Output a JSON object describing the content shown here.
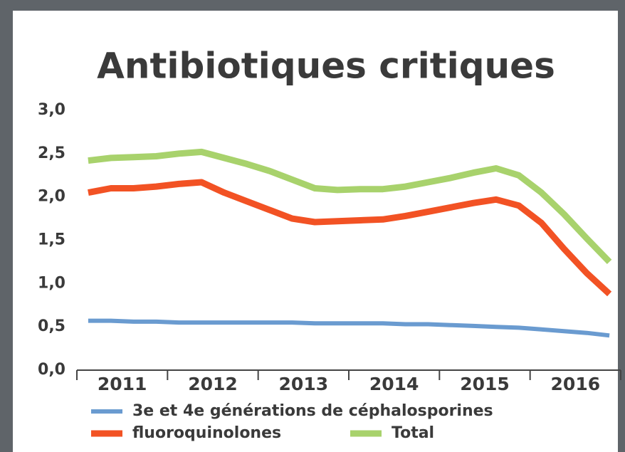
{
  "chart_data": {
    "type": "line",
    "title": "Antibiotiques critiques",
    "categories": [
      null,
      "2011",
      null,
      null,
      null,
      "2012",
      null,
      null,
      null,
      "2013",
      null,
      null,
      null,
      "2014",
      null,
      null,
      null,
      "2015",
      null,
      null,
      null,
      "2016",
      null,
      null
    ],
    "series": [
      {
        "name": "3e et 4e générations de céphalosporines",
        "color": "#6a9bd0",
        "values": [
          0.57,
          0.57,
          0.56,
          0.56,
          0.55,
          0.55,
          0.55,
          0.55,
          0.55,
          0.55,
          0.54,
          0.54,
          0.54,
          0.54,
          0.53,
          0.53,
          0.52,
          0.51,
          0.5,
          0.49,
          0.47,
          0.45,
          0.43,
          0.4
        ]
      },
      {
        "name": "fluoroquinolones",
        "color": "#f25224",
        "values": [
          2.05,
          2.1,
          2.1,
          2.12,
          2.15,
          2.17,
          2.05,
          1.95,
          1.85,
          1.75,
          1.71,
          1.72,
          1.73,
          1.74,
          1.78,
          1.83,
          1.88,
          1.93,
          1.97,
          1.9,
          1.7,
          1.4,
          1.12,
          0.88
        ]
      },
      {
        "name": "Total",
        "color": "#a8d26c",
        "values": [
          2.42,
          2.45,
          2.46,
          2.47,
          2.5,
          2.52,
          2.45,
          2.38,
          2.3,
          2.2,
          2.1,
          2.08,
          2.09,
          2.09,
          2.12,
          2.17,
          2.22,
          2.28,
          2.33,
          2.25,
          2.05,
          1.8,
          1.52,
          1.25
        ]
      }
    ],
    "ylim": [
      0,
      3
    ],
    "yticks": [
      {
        "value": 0,
        "label": "0,0"
      },
      {
        "value": 0.5,
        "label": "0,5"
      },
      {
        "value": 1,
        "label": "1,0"
      },
      {
        "value": 1.5,
        "label": "1,5"
      },
      {
        "value": 2,
        "label": "2,0"
      },
      {
        "value": 2.5,
        "label": "2,5"
      },
      {
        "value": 3,
        "label": "3,0"
      }
    ],
    "grid": false
  }
}
